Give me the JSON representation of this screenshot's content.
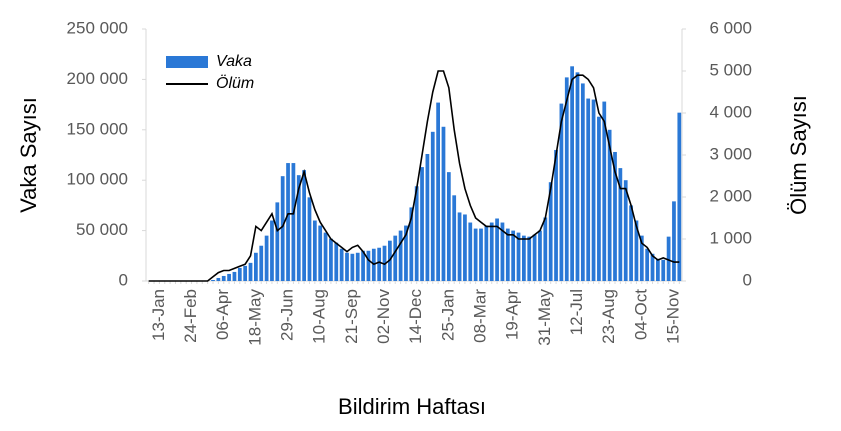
{
  "chart_data": {
    "type": "bar_line",
    "x_label": "Bildirim Haftası",
    "y_label": "Vaka Sayısı",
    "y2_label": "Ölüm Sayısı",
    "categories": [
      null,
      null,
      "13-Jan",
      null,
      null,
      null,
      null,
      null,
      "24-Feb",
      null,
      null,
      null,
      null,
      null,
      "06-Apr",
      null,
      null,
      null,
      null,
      null,
      "18-May",
      null,
      null,
      null,
      null,
      null,
      "29-Jun",
      null,
      null,
      null,
      null,
      null,
      "10-Aug",
      null,
      null,
      null,
      null,
      null,
      "21-Sep",
      null,
      null,
      null,
      null,
      null,
      "02-Nov",
      null,
      null,
      null,
      null,
      null,
      "14-Dec",
      null,
      null,
      null,
      null,
      null,
      "25-Jan",
      null,
      null,
      null,
      null,
      null,
      "08-Mar",
      null,
      null,
      null,
      null,
      null,
      "19-Apr",
      null,
      null,
      null,
      null,
      null,
      "31-May",
      null,
      null,
      null,
      null,
      null,
      "12-Jul",
      null,
      null,
      null,
      null,
      null,
      "23-Aug",
      null,
      null,
      null,
      null,
      null,
      "04-Oct",
      null,
      null,
      null,
      null,
      null,
      "15-Nov",
      null
    ],
    "series": [
      {
        "name": "Vaka",
        "type": "bar",
        "color": "#2a78d6",
        "values": [
          0,
          0,
          0,
          0,
          0,
          0,
          0,
          0,
          0,
          0,
          0,
          0,
          1000,
          3000,
          5000,
          7000,
          9000,
          13000,
          15000,
          18000,
          28000,
          35000,
          45000,
          60000,
          78000,
          104000,
          117000,
          117000,
          105000,
          110000,
          83000,
          60000,
          55000,
          48000,
          42000,
          38000,
          32000,
          28000,
          27000,
          28000,
          30000,
          30000,
          32000,
          33000,
          35000,
          40000,
          45000,
          50000,
          55000,
          73000,
          94000,
          113000,
          126000,
          148000,
          177000,
          153000,
          108000,
          85000,
          68000,
          66000,
          58000,
          52000,
          52000,
          55000,
          58000,
          62000,
          58000,
          52000,
          50000,
          48000,
          45000,
          44000,
          46000,
          50000,
          63000,
          98000,
          130000,
          176000,
          202000,
          213000,
          207000,
          196000,
          181000,
          180000,
          163000,
          178000,
          150000,
          128000,
          112000,
          100000,
          75000,
          60000,
          45000,
          32000,
          27000,
          22000,
          21000,
          44000,
          79000,
          167000
        ]
      },
      {
        "name": "Ölüm",
        "type": "line",
        "axis": "y2",
        "color": "#000000",
        "values": [
          0,
          0,
          0,
          0,
          0,
          0,
          0,
          0,
          0,
          0,
          0,
          0,
          100,
          200,
          250,
          250,
          300,
          350,
          400,
          600,
          1300,
          1200,
          1400,
          1600,
          1200,
          1300,
          1600,
          1600,
          2200,
          2600,
          2100,
          1700,
          1400,
          1200,
          1000,
          900,
          800,
          700,
          800,
          850,
          700,
          500,
          400,
          450,
          400,
          500,
          700,
          900,
          1100,
          1500,
          2200,
          3000,
          3800,
          4500,
          5000,
          5000,
          4600,
          3600,
          2800,
          2200,
          1800,
          1500,
          1400,
          1300,
          1300,
          1300,
          1200,
          1100,
          1100,
          1000,
          1000,
          1000,
          1100,
          1200,
          1500,
          2200,
          3000,
          3800,
          4300,
          4800,
          4900,
          4900,
          4800,
          4600,
          4000,
          3800,
          3200,
          2600,
          2200,
          2200,
          1800,
          1300,
          900,
          800,
          600,
          500,
          550,
          500,
          450,
          450
        ]
      }
    ],
    "ylim": [
      0,
      250000
    ],
    "yticks": [
      0,
      {
        "value": 50000,
        "label": "50 000"
      },
      {
        "value": 100000,
        "label": "100 000"
      },
      {
        "value": 150000,
        "label": "150 000"
      },
      {
        "value": 200000,
        "label": "200 000"
      },
      {
        "value": 250000,
        "label": "250 000"
      }
    ],
    "y2lim": [
      0,
      6000
    ],
    "y2ticks": [
      0,
      {
        "value": 1000,
        "label": "1 000"
      },
      {
        "value": 2000,
        "label": "2 000"
      },
      {
        "value": 3000,
        "label": "3 000"
      },
      {
        "value": 4000,
        "label": "4 000"
      },
      {
        "value": 5000,
        "label": "5 000"
      },
      {
        "value": 6000,
        "label": "6 000"
      }
    ],
    "legend": "top-left"
  }
}
